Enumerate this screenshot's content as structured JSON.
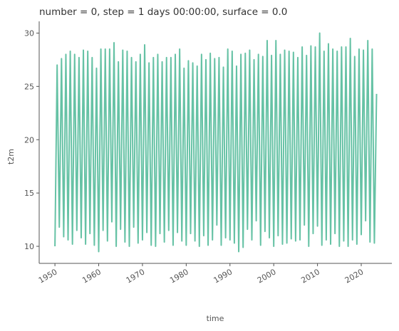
{
  "chart_data": {
    "type": "line",
    "title": "number = 0, step = 1 days 00:00:00, surface = 0.0",
    "xlabel": "time",
    "ylabel": "t2m",
    "x": [
      1950,
      1950.5,
      1951,
      1951.5,
      1952,
      1952.5,
      1953,
      1953.5,
      1954,
      1954.5,
      1955,
      1955.5,
      1956,
      1956.5,
      1957,
      1957.5,
      1958,
      1958.5,
      1959,
      1959.5,
      1960,
      1960.5,
      1961,
      1961.5,
      1962,
      1962.5,
      1963,
      1963.5,
      1964,
      1964.5,
      1965,
      1965.5,
      1966,
      1966.5,
      1967,
      1967.5,
      1968,
      1968.5,
      1969,
      1969.5,
      1970,
      1970.5,
      1971,
      1971.5,
      1972,
      1972.5,
      1973,
      1973.5,
      1974,
      1974.5,
      1975,
      1975.5,
      1976,
      1976.5,
      1977,
      1977.5,
      1978,
      1978.5,
      1979,
      1979.5,
      1980,
      1980.5,
      1981,
      1981.5,
      1982,
      1982.5,
      1983,
      1983.5,
      1984,
      1984.5,
      1985,
      1985.5,
      1986,
      1986.5,
      1987,
      1987.5,
      1988,
      1988.5,
      1989,
      1989.5,
      1990,
      1990.5,
      1991,
      1991.5,
      1992,
      1992.5,
      1993,
      1993.5,
      1994,
      1994.5,
      1995,
      1995.5,
      1996,
      1996.5,
      1997,
      1997.5,
      1998,
      1998.5,
      1999,
      1999.5,
      2000,
      2000.5,
      2001,
      2001.5,
      2002,
      2002.5,
      2003,
      2003.5,
      2004,
      2004.5,
      2005,
      2005.5,
      2006,
      2006.5,
      2007,
      2007.5,
      2008,
      2008.5,
      2009,
      2009.5,
      2010,
      2010.5,
      2011,
      2011.5,
      2012,
      2012.5,
      2013,
      2013.5,
      2014,
      2014.5,
      2015,
      2015.5,
      2016,
      2016.5,
      2017,
      2017.5,
      2018,
      2018.5,
      2019,
      2019.5,
      2020,
      2020.5,
      2021,
      2021.5,
      2022,
      2022.5,
      2023,
      2023.5
    ],
    "values": [
      10.0,
      27.0,
      11.8,
      27.6,
      10.9,
      28.0,
      10.6,
      28.3,
      10.2,
      28.0,
      11.5,
      27.7,
      10.8,
      28.4,
      10.2,
      28.3,
      11.2,
      27.7,
      10.1,
      26.7,
      9.5,
      28.5,
      11.5,
      28.5,
      10.5,
      28.5,
      12.3,
      29.1,
      10.0,
      27.3,
      11.6,
      28.4,
      10.4,
      28.3,
      10.0,
      27.7,
      11.8,
      27.3,
      10.3,
      28.0,
      10.6,
      28.9,
      11.3,
      27.2,
      10.1,
      27.7,
      10.0,
      28.0,
      11.2,
      27.3,
      10.4,
      27.7,
      11.5,
      27.7,
      10.1,
      28.0,
      11.3,
      28.5,
      10.5,
      26.7,
      10.1,
      27.4,
      11.2,
      27.2,
      10.5,
      26.9,
      10.0,
      28.0,
      11.0,
      27.5,
      10.1,
      28.1,
      10.6,
      27.6,
      12.0,
      27.7,
      10.1,
      26.8,
      10.8,
      28.5,
      10.6,
      28.3,
      10.3,
      26.9,
      9.5,
      28.0,
      9.9,
      28.1,
      11.6,
      28.4,
      10.6,
      27.5,
      12.4,
      28.0,
      10.1,
      27.8,
      11.4,
      29.3,
      10.8,
      27.9,
      10.0,
      29.3,
      11.0,
      28.0,
      10.2,
      28.4,
      10.3,
      28.3,
      10.7,
      28.2,
      10.5,
      27.7,
      10.6,
      28.7,
      12.0,
      27.9,
      10.0,
      28.8,
      11.2,
      28.7,
      11.9,
      30.0,
      10.1,
      28.3,
      10.6,
      29.0,
      10.2,
      28.5,
      11.2,
      28.3,
      10.0,
      28.7,
      10.5,
      28.7,
      10.0,
      29.5,
      10.6,
      27.8,
      10.2,
      28.5,
      11.1,
      28.4,
      12.4,
      29.3,
      10.4,
      28.5,
      10.3,
      24.3
    ],
    "color": "#66c2a5",
    "xlim": [
      1946.4,
      2027
    ],
    "xticks": [
      1950,
      1960,
      1970,
      1980,
      1990,
      2000,
      2010,
      2020
    ],
    "ylim": [
      8.4,
      31.1
    ],
    "yticks": [
      10,
      15,
      20,
      25,
      30
    ],
    "grid": false
  }
}
